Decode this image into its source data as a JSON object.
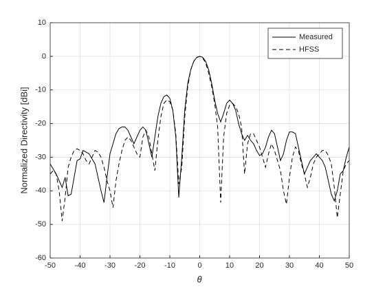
{
  "chart_data": {
    "type": "line",
    "xlabel": "θ",
    "ylabel": "Normalized Directivity [dBi]",
    "x": [
      -50,
      -49,
      -48,
      -47,
      -46,
      -45,
      -44,
      -43,
      -42,
      -41,
      -40,
      -39,
      -38,
      -37,
      -36,
      -35,
      -34,
      -33,
      -32,
      -31,
      -30,
      -29,
      -28,
      -27,
      -26,
      -25,
      -24,
      -23,
      -22,
      -21,
      -20,
      -19,
      -18,
      -17,
      -16,
      -15,
      -14,
      -13,
      -12,
      -11,
      -10,
      -9,
      -8,
      -7,
      -6,
      -5,
      -4,
      -3,
      -2,
      -1,
      0,
      1,
      2,
      3,
      4,
      5,
      6,
      7,
      8,
      9,
      10,
      11,
      12,
      13,
      14,
      15,
      16,
      17,
      18,
      19,
      20,
      21,
      22,
      23,
      24,
      25,
      26,
      27,
      28,
      29,
      30,
      31,
      32,
      33,
      34,
      35,
      36,
      37,
      38,
      39,
      40,
      41,
      42,
      43,
      44,
      45,
      46,
      47,
      48,
      49,
      50
    ],
    "series": [
      {
        "name": "Measured",
        "color": "#000000",
        "line_style": "solid",
        "values": [
          -32,
          -33.5,
          -35,
          -37,
          -39,
          -36,
          -41.5,
          -41,
          -36,
          -31,
          -30.5,
          -28,
          -28.5,
          -29,
          -30.5,
          -32,
          -36,
          -40,
          -43.5,
          -36,
          -29,
          -26,
          -23,
          -21.5,
          -21,
          -21,
          -22,
          -24,
          -26,
          -24,
          -22,
          -21,
          -22,
          -26,
          -30,
          -24,
          -18,
          -14,
          -12,
          -11.5,
          -12.5,
          -16,
          -24,
          -42,
          -30,
          -16,
          -8,
          -4,
          -1.5,
          -0.3,
          0,
          -0.3,
          -1.5,
          -4,
          -8,
          -13,
          -17,
          -19.5,
          -17,
          -14,
          -13,
          -14,
          -16,
          -20,
          -23,
          -25,
          -23.5,
          -25,
          -26,
          -28,
          -29.5,
          -29,
          -27,
          -24,
          -22,
          -23,
          -27,
          -31,
          -29,
          -25,
          -22.5,
          -22.5,
          -23,
          -27,
          -31,
          -35,
          -33,
          -31,
          -30,
          -29,
          -30,
          -31,
          -33,
          -37,
          -41,
          -43,
          -40,
          -35,
          -34,
          -30,
          -27
        ]
      },
      {
        "name": "HFSS",
        "color": "#000000",
        "line_style": "dashed",
        "values": [
          -35,
          -34,
          -35,
          -40,
          -49,
          -42,
          -33,
          -30,
          -28,
          -27.5,
          -28,
          -29,
          -31,
          -32,
          -30,
          -28,
          -28.5,
          -30,
          -33,
          -37,
          -40,
          -45,
          -37,
          -32,
          -28,
          -25,
          -24,
          -25,
          -27,
          -29,
          -30,
          -24,
          -22,
          -24,
          -29,
          -34,
          -25,
          -18,
          -14,
          -13,
          -13.5,
          -16,
          -23,
          -38,
          -33,
          -18,
          -9,
          -4,
          -1.5,
          -0.4,
          0,
          -0.5,
          -2,
          -5,
          -9,
          -14,
          -21,
          -43.5,
          -24,
          -17,
          -14.5,
          -14,
          -15,
          -17,
          -21,
          -35,
          -26,
          -23,
          -23,
          -25,
          -27,
          -30,
          -33,
          -29,
          -26,
          -28,
          -31,
          -34,
          -40,
          -44,
          -36,
          -30,
          -27,
          -28,
          -32,
          -35,
          -39,
          -36,
          -32,
          -30,
          -29,
          -28,
          -28,
          -29.5,
          -32,
          -39,
          -48,
          -41,
          -34,
          -32,
          -31
        ]
      }
    ],
    "xlim": [
      -50,
      50
    ],
    "xticks": [
      -50,
      -40,
      -30,
      -20,
      -10,
      0,
      10,
      20,
      30,
      40,
      50
    ],
    "ylim": [
      -60,
      10
    ],
    "yticks": [
      -60,
      -50,
      -40,
      -30,
      -20,
      -10,
      0,
      10
    ],
    "grid": true,
    "legend": "northeast"
  }
}
